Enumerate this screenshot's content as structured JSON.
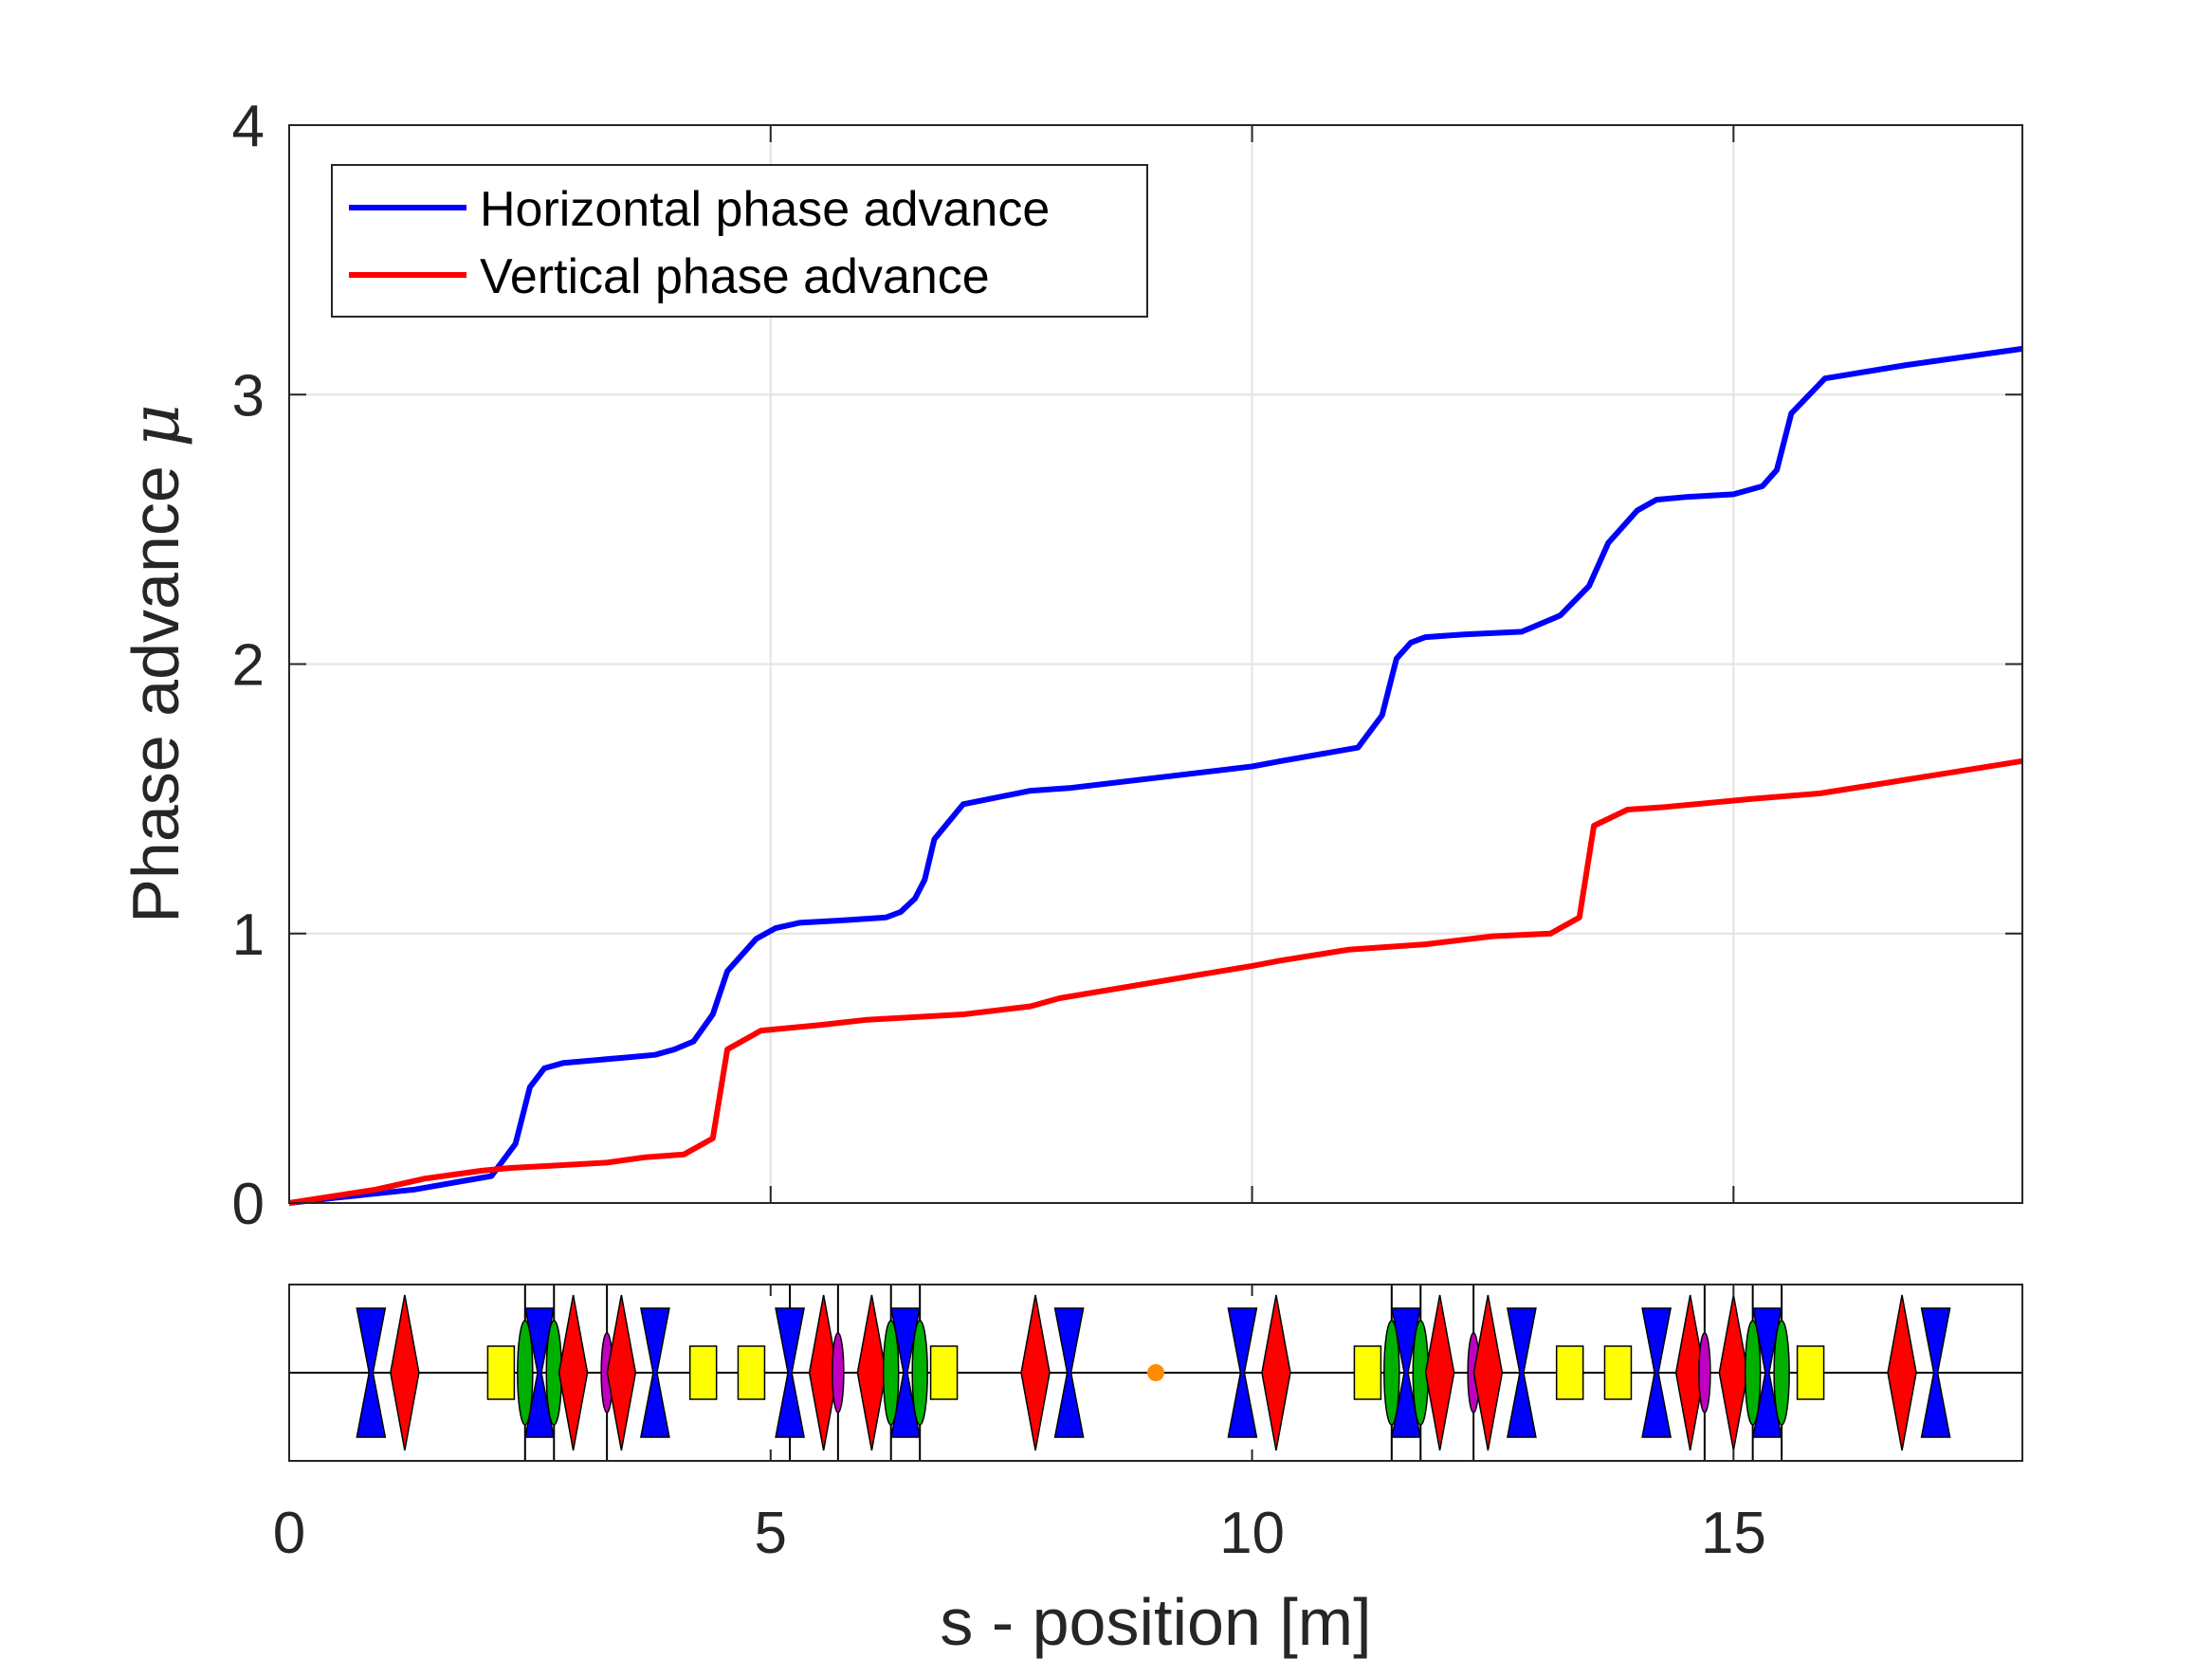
{
  "chart_data": {
    "type": "line",
    "xlabel": "s - position [m]",
    "ylabel": "Phase advance",
    "ylabel_symbol": "μ",
    "xlim": [
      0,
      18
    ],
    "ylim": [
      0,
      4
    ],
    "x_ticks": [
      "0",
      "5",
      "10",
      "15"
    ],
    "y_ticks": [
      "0",
      "1",
      "2",
      "3",
      "4"
    ],
    "grid": true,
    "legend_position": "top-left",
    "series": [
      {
        "name": "Horizontal phase advance",
        "color": "#0000ff",
        "points": [
          [
            0,
            0
          ],
          [
            0.5,
            0.02
          ],
          [
            1.3,
            0.05
          ],
          [
            2.1,
            0.1
          ],
          [
            2.35,
            0.22
          ],
          [
            2.5,
            0.43
          ],
          [
            2.65,
            0.5
          ],
          [
            2.85,
            0.52
          ],
          [
            3.5,
            0.54
          ],
          [
            3.8,
            0.55
          ],
          [
            4.0,
            0.57
          ],
          [
            4.2,
            0.6
          ],
          [
            4.4,
            0.7
          ],
          [
            4.55,
            0.86
          ],
          [
            4.85,
            0.98
          ],
          [
            5.05,
            1.02
          ],
          [
            5.3,
            1.04
          ],
          [
            5.8,
            1.05
          ],
          [
            6.2,
            1.06
          ],
          [
            6.35,
            1.08
          ],
          [
            6.5,
            1.13
          ],
          [
            6.6,
            1.2
          ],
          [
            6.7,
            1.35
          ],
          [
            7.0,
            1.48
          ],
          [
            7.7,
            1.53
          ],
          [
            8.1,
            1.54
          ],
          [
            10.0,
            1.62
          ],
          [
            10.3,
            1.64
          ],
          [
            11.1,
            1.69
          ],
          [
            11.35,
            1.81
          ],
          [
            11.5,
            2.02
          ],
          [
            11.65,
            2.08
          ],
          [
            11.8,
            2.1
          ],
          [
            12.2,
            2.11
          ],
          [
            12.8,
            2.12
          ],
          [
            13.0,
            2.15
          ],
          [
            13.2,
            2.18
          ],
          [
            13.5,
            2.29
          ],
          [
            13.7,
            2.45
          ],
          [
            14.0,
            2.57
          ],
          [
            14.2,
            2.61
          ],
          [
            14.5,
            2.62
          ],
          [
            15.0,
            2.63
          ],
          [
            15.3,
            2.66
          ],
          [
            15.45,
            2.72
          ],
          [
            15.6,
            2.93
          ],
          [
            15.95,
            3.06
          ],
          [
            16.8,
            3.11
          ],
          [
            18,
            3.17
          ]
        ]
      },
      {
        "name": "Vertical phase advance",
        "color": "#ff0000",
        "points": [
          [
            0,
            0
          ],
          [
            0.9,
            0.05
          ],
          [
            1.4,
            0.09
          ],
          [
            2.0,
            0.12
          ],
          [
            2.3,
            0.13
          ],
          [
            2.8,
            0.14
          ],
          [
            3.3,
            0.15
          ],
          [
            3.7,
            0.17
          ],
          [
            4.1,
            0.18
          ],
          [
            4.4,
            0.24
          ],
          [
            4.55,
            0.57
          ],
          [
            4.9,
            0.64
          ],
          [
            5.5,
            0.66
          ],
          [
            6.0,
            0.68
          ],
          [
            6.5,
            0.69
          ],
          [
            7.0,
            0.7
          ],
          [
            7.7,
            0.73
          ],
          [
            8.0,
            0.76
          ],
          [
            10.0,
            0.88
          ],
          [
            10.3,
            0.9
          ],
          [
            11.0,
            0.94
          ],
          [
            11.8,
            0.96
          ],
          [
            12.5,
            0.99
          ],
          [
            13.1,
            1.0
          ],
          [
            13.4,
            1.06
          ],
          [
            13.55,
            1.4
          ],
          [
            13.9,
            1.46
          ],
          [
            14.3,
            1.47
          ],
          [
            15.2,
            1.5
          ],
          [
            15.9,
            1.52
          ],
          [
            16.6,
            1.56
          ],
          [
            18,
            1.64
          ]
        ]
      }
    ],
    "lattice": {
      "elements": [
        {
          "type": "defocus-quad",
          "s": 0.85,
          "color": "#0000ff"
        },
        {
          "type": "focus-quad",
          "s": 1.2,
          "color": "#ff0000"
        },
        {
          "type": "dipole",
          "s": 2.2,
          "color": "#ffff00"
        },
        {
          "type": "sextupole",
          "s": 2.45,
          "color": "#00b000"
        },
        {
          "type": "defocus-quad",
          "s": 2.6,
          "color": "#0000ff"
        },
        {
          "type": "sextupole",
          "s": 2.75,
          "color": "#00b000"
        },
        {
          "type": "focus-quad",
          "s": 2.95,
          "color": "#ff0000"
        },
        {
          "type": "octupole",
          "s": 3.3,
          "color": "#c000c0"
        },
        {
          "type": "focus-quad",
          "s": 3.45,
          "color": "#ff0000"
        },
        {
          "type": "defocus-quad",
          "s": 3.8,
          "color": "#0000ff"
        },
        {
          "type": "dipole",
          "s": 4.3,
          "color": "#ffff00"
        },
        {
          "type": "dipole",
          "s": 4.8,
          "color": "#ffff00"
        },
        {
          "type": "defocus-quad",
          "s": 5.2,
          "color": "#0000ff"
        },
        {
          "type": "focus-quad",
          "s": 5.55,
          "color": "#ff0000"
        },
        {
          "type": "octupole",
          "s": 5.7,
          "color": "#c000c0"
        },
        {
          "type": "focus-quad",
          "s": 6.05,
          "color": "#ff0000"
        },
        {
          "type": "sextupole",
          "s": 6.25,
          "color": "#00b000"
        },
        {
          "type": "defocus-quad",
          "s": 6.4,
          "color": "#0000ff"
        },
        {
          "type": "sextupole",
          "s": 6.55,
          "color": "#00b000"
        },
        {
          "type": "dipole",
          "s": 6.8,
          "color": "#ffff00"
        },
        {
          "type": "focus-quad",
          "s": 7.75,
          "color": "#ff0000"
        },
        {
          "type": "defocus-quad",
          "s": 8.1,
          "color": "#0000ff"
        },
        {
          "type": "marker",
          "s": 9.0,
          "color": "#ff8c00"
        },
        {
          "type": "defocus-quad",
          "s": 9.9,
          "color": "#0000ff"
        },
        {
          "type": "focus-quad",
          "s": 10.25,
          "color": "#ff0000"
        },
        {
          "type": "dipole",
          "s": 11.2,
          "color": "#ffff00"
        },
        {
          "type": "sextupole",
          "s": 11.45,
          "color": "#00b000"
        },
        {
          "type": "defocus-quad",
          "s": 11.6,
          "color": "#0000ff"
        },
        {
          "type": "sextupole",
          "s": 11.75,
          "color": "#00b000"
        },
        {
          "type": "focus-quad",
          "s": 11.95,
          "color": "#ff0000"
        },
        {
          "type": "octupole",
          "s": 12.3,
          "color": "#c000c0"
        },
        {
          "type": "focus-quad",
          "s": 12.45,
          "color": "#ff0000"
        },
        {
          "type": "defocus-quad",
          "s": 12.8,
          "color": "#0000ff"
        },
        {
          "type": "dipole",
          "s": 13.3,
          "color": "#ffff00"
        },
        {
          "type": "dipole",
          "s": 13.8,
          "color": "#ffff00"
        },
        {
          "type": "defocus-quad",
          "s": 14.2,
          "color": "#0000ff"
        },
        {
          "type": "focus-quad",
          "s": 14.55,
          "color": "#ff0000"
        },
        {
          "type": "octupole",
          "s": 14.7,
          "color": "#c000c0"
        },
        {
          "type": "focus-quad",
          "s": 15.0,
          "color": "#ff0000"
        },
        {
          "type": "sextupole",
          "s": 15.2,
          "color": "#00b000"
        },
        {
          "type": "defocus-quad",
          "s": 15.35,
          "color": "#0000ff"
        },
        {
          "type": "sextupole",
          "s": 15.5,
          "color": "#00b000"
        },
        {
          "type": "dipole",
          "s": 15.8,
          "color": "#ffff00"
        },
        {
          "type": "focus-quad",
          "s": 16.75,
          "color": "#ff0000"
        },
        {
          "type": "defocus-quad",
          "s": 17.1,
          "color": "#0000ff"
        }
      ],
      "dividers": [
        2.45,
        2.75,
        3.3,
        5.2,
        5.7,
        6.25,
        6.55,
        11.45,
        11.75,
        12.3,
        14.7,
        15.2,
        15.5
      ]
    }
  }
}
